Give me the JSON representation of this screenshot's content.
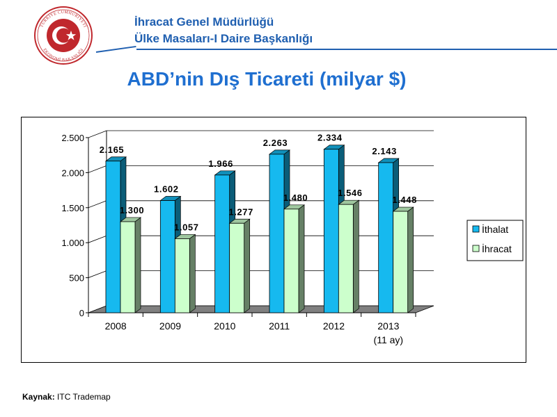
{
  "header": {
    "line1": "İhracat Genel Müdürlüğü",
    "line2": "Ülke Masaları-I Daire Başkanlığı",
    "logo_text_top": "TÜRKİYE CUMHURİYETİ",
    "logo_text_bottom": "EKONOMİ BAKANLIĞI"
  },
  "page": {
    "title": "ABD’nin Dış Ticareti (milyar $)"
  },
  "source": {
    "label": "Kaynak:",
    "text": "ITC Trademap"
  },
  "colors": {
    "brand_blue": "#1f5fb0",
    "title_blue": "#1f6fd0",
    "logo_red": "#c0282d"
  },
  "chart_data": {
    "type": "bar",
    "categories": [
      "2008",
      "2009",
      "2010",
      "2011",
      "2012",
      "2013"
    ],
    "category_sublabels": [
      "",
      "",
      "",
      "",
      "",
      "(11 ay)"
    ],
    "series": [
      {
        "name": "İthalat",
        "values": [
          2165,
          1602,
          1966,
          2263,
          2334,
          2143
        ],
        "labels": [
          "2.165",
          "1.602",
          "1.966",
          "2.263",
          "2.334",
          "2.143"
        ],
        "color": "#16b9ef"
      },
      {
        "name": "İhracat",
        "values": [
          1300,
          1057,
          1277,
          1480,
          1546,
          1448
        ],
        "labels": [
          "1.300",
          "1.057",
          "1.277",
          "1.480",
          "1.546",
          "1.448"
        ],
        "color": "#ccffcc"
      }
    ],
    "ylim": [
      0,
      2500
    ],
    "yticks": [
      0,
      500,
      1000,
      1500,
      2000,
      2500
    ],
    "ytick_labels": [
      "0",
      "500",
      "1.000",
      "1.500",
      "2.000",
      "2.500"
    ],
    "grid": true,
    "legend_position": "right",
    "three_d": true
  }
}
